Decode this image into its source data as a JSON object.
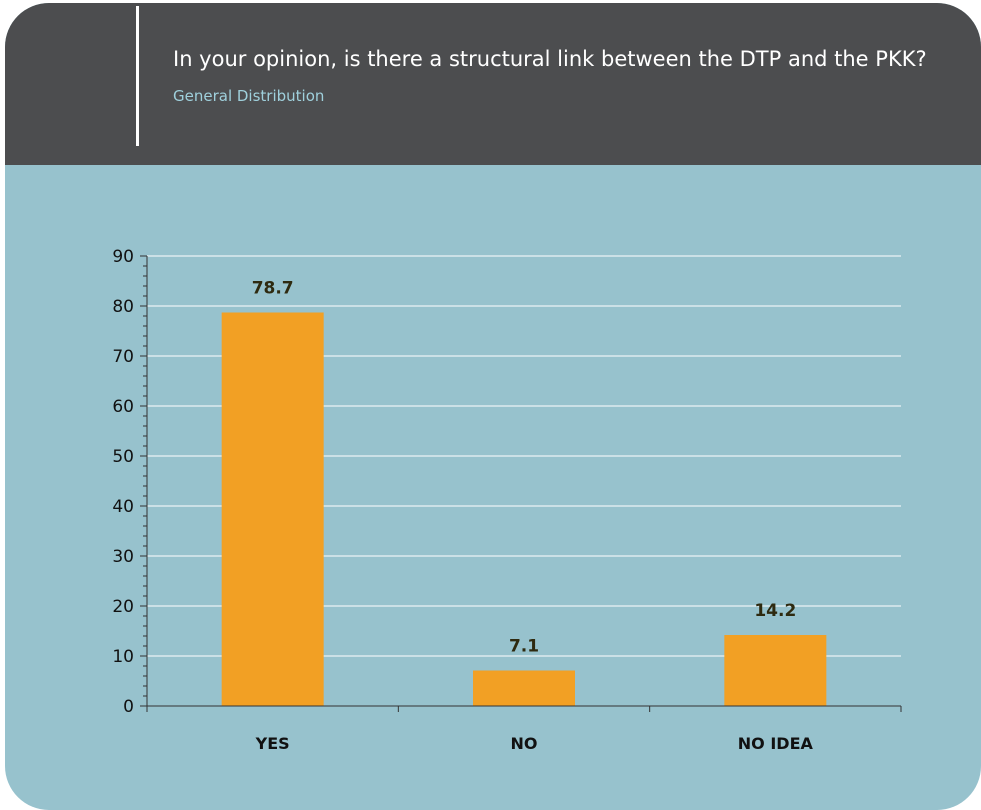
{
  "header": {
    "title": "In your opinion, is there a structural link between the DTP and the PKK?",
    "subtitle": "General Distribution"
  },
  "colors": {
    "header_bg": "#4c4d4f",
    "panel_bg": "#97c2cd",
    "bar": "#f2a024",
    "grid": "#ffffff"
  },
  "chart_data": {
    "type": "bar",
    "title": "In your opinion, is there a structural link between the DTP and the PKK?",
    "subtitle": "General Distribution",
    "categories": [
      "YES",
      "NO",
      "NO IDEA"
    ],
    "values": [
      78.7,
      7.1,
      14.2
    ],
    "value_labels": [
      "78.7",
      "7.1",
      "14.2"
    ],
    "xlabel": "",
    "ylabel": "",
    "ylim": [
      0,
      90
    ],
    "yticks": [
      0,
      10,
      20,
      30,
      40,
      50,
      60,
      70,
      80,
      90
    ],
    "grid": true,
    "legend": "none"
  }
}
